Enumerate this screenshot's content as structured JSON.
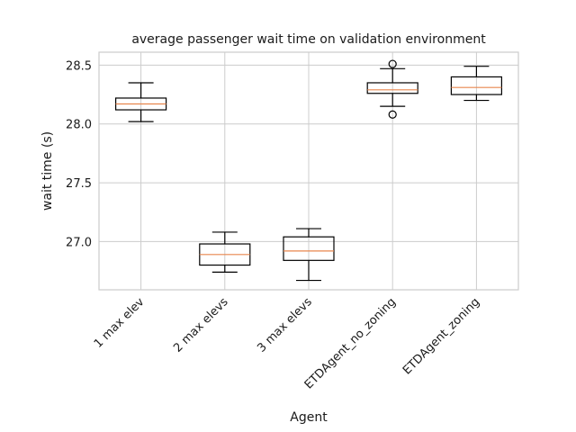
{
  "chart_data": {
    "type": "boxplot",
    "title": "average passenger wait time on validation environment",
    "xlabel": "Agent",
    "ylabel": "wait time (s)",
    "ylim": [
      26.59,
      28.61
    ],
    "yticks": [
      "27.0",
      "27.5",
      "28.0",
      "28.5"
    ],
    "ytick_values": [
      27.0,
      27.5,
      28.0,
      28.5
    ],
    "grid": true,
    "median_color": "#e8864e",
    "box_color": "#000000",
    "categories": [
      "1 max elev",
      "2 max elevs",
      "3 max elevs",
      "ETDAgent_no_zoning",
      "ETDAgent_zoning"
    ],
    "boxes": [
      {
        "whisker_low": 28.02,
        "q1": 28.12,
        "median": 28.17,
        "q3": 28.22,
        "whisker_high": 28.35,
        "fliers": []
      },
      {
        "whisker_low": 26.74,
        "q1": 26.8,
        "median": 26.89,
        "q3": 26.98,
        "whisker_high": 27.08,
        "fliers": []
      },
      {
        "whisker_low": 26.67,
        "q1": 26.84,
        "median": 26.92,
        "q3": 27.04,
        "whisker_high": 27.11,
        "fliers": []
      },
      {
        "whisker_low": 28.15,
        "q1": 28.26,
        "median": 28.29,
        "q3": 28.35,
        "whisker_high": 28.47,
        "fliers": [
          28.51,
          28.08
        ]
      },
      {
        "whisker_low": 28.2,
        "q1": 28.25,
        "median": 28.31,
        "q3": 28.4,
        "whisker_high": 28.49,
        "fliers": []
      }
    ]
  }
}
